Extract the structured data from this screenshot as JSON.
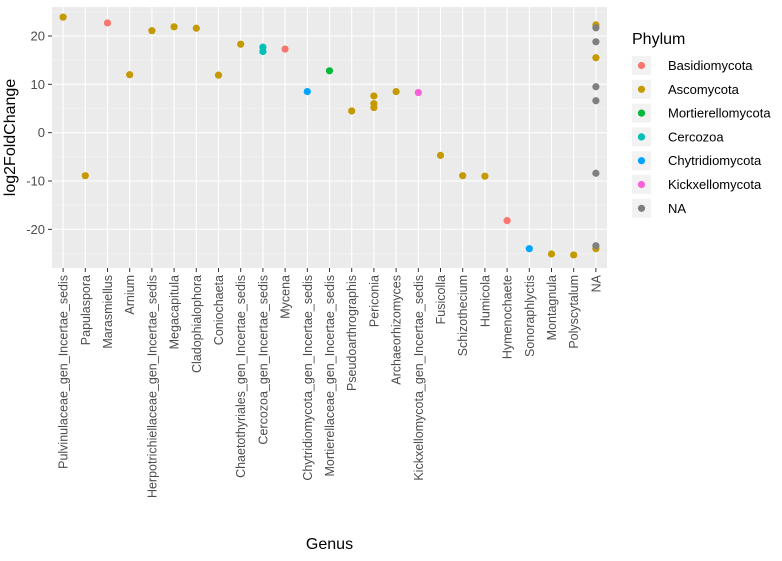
{
  "chart_data": {
    "type": "scatter",
    "title": "",
    "xlabel": "Genus",
    "ylabel": "log2FoldChange",
    "ylim": [
      -28,
      26
    ],
    "yticks": [
      -20,
      -10,
      0,
      10,
      20
    ],
    "grid": true,
    "legend_position": "right",
    "legend_title": "Phylum",
    "categories": [
      "Pulvinulaceae_gen_Incertae_sedis",
      "Papulaspora",
      "Marasmiellus",
      "Arnium",
      "Herpotrichiellaceae_gen_Incertae_sedis",
      "Megacapitula",
      "Cladophialophora",
      "Coniochaeta",
      "Chaetothyriales_gen_Incertae_sedis",
      "Cercozoa_gen_Incertae_sedis",
      "Mycena",
      "Chytridiomycota_gen_Incertae_sedis",
      "Mortierellaceae_gen_Incertae_sedis",
      "Pseudoarthrographis",
      "Periconia",
      "Archaeorhizomyces",
      "Kickxellomycota_gen_Incertae_sedis",
      "Fusicolla",
      "Schizothecium",
      "Humicola",
      "Hymenochaete",
      "Sonoraphlyctis",
      "Montagnula",
      "Polyscytalum",
      "NA"
    ],
    "series": [
      {
        "name": "Basidiomycota",
        "color": "#F8766D",
        "points": [
          {
            "x": "Marasmiellus",
            "y": 22.7
          },
          {
            "x": "Mycena",
            "y": 17.3
          },
          {
            "x": "Hymenochaete",
            "y": -18.2
          }
        ]
      },
      {
        "name": "Ascomycota",
        "color": "#C49A00",
        "points": [
          {
            "x": "Pulvinulaceae_gen_Incertae_sedis",
            "y": 23.9
          },
          {
            "x": "Papulaspora",
            "y": -8.9
          },
          {
            "x": "Arnium",
            "y": 12.0
          },
          {
            "x": "Herpotrichiellaceae_gen_Incertae_sedis",
            "y": 21.1
          },
          {
            "x": "Megacapitula",
            "y": 21.9
          },
          {
            "x": "Cladophialophora",
            "y": 21.6
          },
          {
            "x": "Coniochaeta",
            "y": 11.9
          },
          {
            "x": "Chaetothyriales_gen_Incertae_sedis",
            "y": 18.3
          },
          {
            "x": "Pseudoarthrographis",
            "y": 4.5
          },
          {
            "x": "Periconia",
            "y": 7.6
          },
          {
            "x": "Periconia",
            "y": 6.0
          },
          {
            "x": "Periconia",
            "y": 5.2
          },
          {
            "x": "Archaeorhizomyces",
            "y": 8.5
          },
          {
            "x": "Fusicolla",
            "y": -4.7
          },
          {
            "x": "Schizothecium",
            "y": -8.9
          },
          {
            "x": "Humicola",
            "y": -9.0
          },
          {
            "x": "Montagnula",
            "y": -25.1
          },
          {
            "x": "Polyscytalum",
            "y": -25.3
          },
          {
            "x": "NA",
            "y": 22.3
          },
          {
            "x": "NA",
            "y": 15.5
          },
          {
            "x": "NA",
            "y": -24.0
          }
        ]
      },
      {
        "name": "Mortierellomycota",
        "color": "#00BA38",
        "points": [
          {
            "x": "Mortierellaceae_gen_Incertae_sedis",
            "y": 12.8
          }
        ]
      },
      {
        "name": "Cercozoa",
        "color": "#00C0B8",
        "points": [
          {
            "x": "Cercozoa_gen_Incertae_sedis",
            "y": 17.7
          },
          {
            "x": "Cercozoa_gen_Incertae_sedis",
            "y": 16.8
          }
        ]
      },
      {
        "name": "Chytridiomycota",
        "color": "#00A5FF",
        "points": [
          {
            "x": "Chytridiomycota_gen_Incertae_sedis",
            "y": 8.5
          },
          {
            "x": "Sonoraphlyctis",
            "y": -24.0
          }
        ]
      },
      {
        "name": "Kickxellomycota",
        "color": "#FB61D7",
        "points": [
          {
            "x": "Kickxellomycota_gen_Incertae_sedis",
            "y": 8.3
          }
        ]
      },
      {
        "name": "NA",
        "color": "#7F7F7F",
        "points": [
          {
            "x": "NA",
            "y": 21.7
          },
          {
            "x": "NA",
            "y": 18.8
          },
          {
            "x": "NA",
            "y": 9.5
          },
          {
            "x": "NA",
            "y": 6.6
          },
          {
            "x": "NA",
            "y": -8.4
          },
          {
            "x": "NA",
            "y": -23.4
          }
        ]
      }
    ]
  }
}
